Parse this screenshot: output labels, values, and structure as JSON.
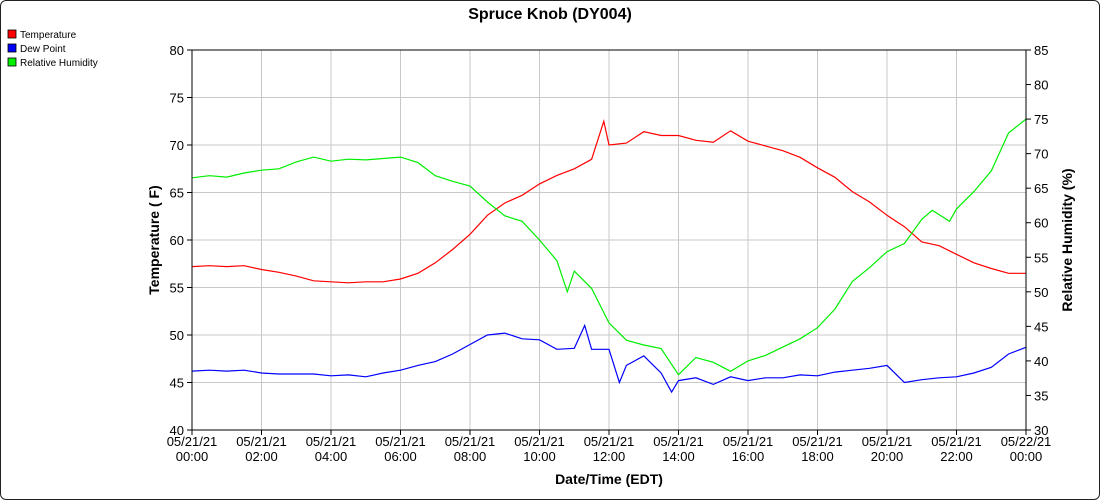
{
  "chart_data": {
    "type": "line",
    "title": "Spruce Knob (DY004)",
    "xlabel": "Date/Time (EDT)",
    "ylabel": "Temperature ( F)",
    "y2label": "Relative Humidity (%)",
    "ylim": [
      40,
      80
    ],
    "y2lim": [
      30,
      85
    ],
    "yticks": [
      "40",
      "45",
      "50",
      "55",
      "60",
      "65",
      "70",
      "75",
      "80"
    ],
    "y2ticks": [
      "30",
      "35",
      "40",
      "45",
      "50",
      "55",
      "60",
      "65",
      "70",
      "75",
      "80",
      "85"
    ],
    "xlim_hours": [
      0,
      24
    ],
    "xticks": [
      {
        "date": "05/21/21",
        "time": "00:00"
      },
      {
        "date": "05/21/21",
        "time": "02:00"
      },
      {
        "date": "05/21/21",
        "time": "04:00"
      },
      {
        "date": "05/21/21",
        "time": "06:00"
      },
      {
        "date": "05/21/21",
        "time": "08:00"
      },
      {
        "date": "05/21/21",
        "time": "10:00"
      },
      {
        "date": "05/21/21",
        "time": "12:00"
      },
      {
        "date": "05/21/21",
        "time": "14:00"
      },
      {
        "date": "05/21/21",
        "time": "16:00"
      },
      {
        "date": "05/21/21",
        "time": "18:00"
      },
      {
        "date": "05/21/21",
        "time": "20:00"
      },
      {
        "date": "05/21/21",
        "time": "22:00"
      },
      {
        "date": "05/22/21",
        "time": "00:00"
      }
    ],
    "grid": true,
    "legend_position": "top-left",
    "series": [
      {
        "name": "Temperature",
        "color": "#ff0000",
        "axis": "left",
        "points": [
          [
            0.0,
            57.2
          ],
          [
            0.5,
            57.3
          ],
          [
            1.0,
            57.2
          ],
          [
            1.5,
            57.3
          ],
          [
            2.0,
            56.9
          ],
          [
            2.5,
            56.6
          ],
          [
            3.0,
            56.2
          ],
          [
            3.5,
            55.7
          ],
          [
            4.0,
            55.6
          ],
          [
            4.5,
            55.5
          ],
          [
            5.0,
            55.6
          ],
          [
            5.5,
            55.6
          ],
          [
            6.0,
            55.9
          ],
          [
            6.5,
            56.5
          ],
          [
            7.0,
            57.6
          ],
          [
            7.5,
            59.0
          ],
          [
            8.0,
            60.6
          ],
          [
            8.5,
            62.6
          ],
          [
            9.0,
            63.9
          ],
          [
            9.5,
            64.7
          ],
          [
            10.0,
            65.9
          ],
          [
            10.5,
            66.8
          ],
          [
            11.0,
            67.5
          ],
          [
            11.5,
            68.5
          ],
          [
            11.85,
            72.5
          ],
          [
            12.0,
            70.0
          ],
          [
            12.5,
            70.2
          ],
          [
            13.0,
            71.4
          ],
          [
            13.5,
            71.0
          ],
          [
            14.0,
            71.0
          ],
          [
            14.5,
            70.5
          ],
          [
            15.0,
            70.3
          ],
          [
            15.5,
            71.5
          ],
          [
            16.0,
            70.4
          ],
          [
            16.5,
            69.9
          ],
          [
            17.0,
            69.4
          ],
          [
            17.5,
            68.7
          ],
          [
            18.0,
            67.6
          ],
          [
            18.5,
            66.6
          ],
          [
            19.0,
            65.1
          ],
          [
            19.5,
            64.0
          ],
          [
            20.0,
            62.6
          ],
          [
            20.5,
            61.4
          ],
          [
            21.0,
            59.8
          ],
          [
            21.5,
            59.4
          ],
          [
            22.0,
            58.5
          ],
          [
            22.5,
            57.6
          ],
          [
            23.0,
            57.0
          ],
          [
            23.5,
            56.5
          ],
          [
            24.0,
            56.5
          ]
        ]
      },
      {
        "name": "Dew Point",
        "color": "#0000ff",
        "axis": "left",
        "points": [
          [
            0.0,
            46.2
          ],
          [
            0.5,
            46.3
          ],
          [
            1.0,
            46.2
          ],
          [
            1.5,
            46.3
          ],
          [
            2.0,
            46.0
          ],
          [
            2.5,
            45.9
          ],
          [
            3.0,
            45.9
          ],
          [
            3.5,
            45.9
          ],
          [
            4.0,
            45.7
          ],
          [
            4.5,
            45.8
          ],
          [
            5.0,
            45.6
          ],
          [
            5.5,
            46.0
          ],
          [
            6.0,
            46.3
          ],
          [
            6.5,
            46.8
          ],
          [
            7.0,
            47.2
          ],
          [
            7.5,
            48.0
          ],
          [
            8.0,
            49.0
          ],
          [
            8.5,
            50.0
          ],
          [
            9.0,
            50.2
          ],
          [
            9.5,
            49.6
          ],
          [
            10.0,
            49.5
          ],
          [
            10.5,
            48.5
          ],
          [
            11.0,
            48.6
          ],
          [
            11.3,
            51.0
          ],
          [
            11.5,
            48.5
          ],
          [
            12.0,
            48.5
          ],
          [
            12.3,
            45.0
          ],
          [
            12.5,
            46.8
          ],
          [
            13.0,
            47.8
          ],
          [
            13.5,
            46.0
          ],
          [
            13.8,
            44.0
          ],
          [
            14.0,
            45.2
          ],
          [
            14.5,
            45.5
          ],
          [
            15.0,
            44.8
          ],
          [
            15.5,
            45.6
          ],
          [
            16.0,
            45.2
          ],
          [
            16.5,
            45.5
          ],
          [
            17.0,
            45.5
          ],
          [
            17.5,
            45.8
          ],
          [
            18.0,
            45.7
          ],
          [
            18.5,
            46.1
          ],
          [
            19.0,
            46.3
          ],
          [
            19.5,
            46.5
          ],
          [
            20.0,
            46.8
          ],
          [
            20.5,
            45.0
          ],
          [
            21.0,
            45.3
          ],
          [
            21.5,
            45.5
          ],
          [
            22.0,
            45.6
          ],
          [
            22.5,
            46.0
          ],
          [
            23.0,
            46.6
          ],
          [
            23.5,
            48.0
          ],
          [
            24.0,
            48.7
          ]
        ]
      },
      {
        "name": "Relative Humidity",
        "color": "#00ee00",
        "axis": "right",
        "points": [
          [
            0.0,
            66.5
          ],
          [
            0.5,
            66.8
          ],
          [
            1.0,
            66.6
          ],
          [
            1.5,
            67.2
          ],
          [
            2.0,
            67.6
          ],
          [
            2.5,
            67.8
          ],
          [
            3.0,
            68.8
          ],
          [
            3.5,
            69.5
          ],
          [
            4.0,
            68.9
          ],
          [
            4.5,
            69.2
          ],
          [
            5.0,
            69.1
          ],
          [
            5.5,
            69.3
          ],
          [
            6.0,
            69.5
          ],
          [
            6.5,
            68.7
          ],
          [
            7.0,
            66.8
          ],
          [
            7.5,
            66.0
          ],
          [
            8.0,
            65.3
          ],
          [
            8.5,
            63.0
          ],
          [
            9.0,
            61.0
          ],
          [
            9.5,
            60.2
          ],
          [
            10.0,
            57.5
          ],
          [
            10.5,
            54.5
          ],
          [
            10.8,
            50.0
          ],
          [
            11.0,
            53.0
          ],
          [
            11.5,
            50.5
          ],
          [
            12.0,
            45.5
          ],
          [
            12.5,
            43.0
          ],
          [
            13.0,
            42.3
          ],
          [
            13.5,
            41.8
          ],
          [
            14.0,
            38.0
          ],
          [
            14.5,
            40.5
          ],
          [
            15.0,
            39.8
          ],
          [
            15.5,
            38.5
          ],
          [
            16.0,
            40.0
          ],
          [
            16.5,
            40.8
          ],
          [
            17.0,
            42.0
          ],
          [
            17.5,
            43.2
          ],
          [
            18.0,
            44.8
          ],
          [
            18.5,
            47.5
          ],
          [
            19.0,
            51.5
          ],
          [
            19.5,
            53.5
          ],
          [
            20.0,
            55.8
          ],
          [
            20.5,
            57.0
          ],
          [
            21.0,
            60.5
          ],
          [
            21.3,
            61.8
          ],
          [
            21.8,
            60.2
          ],
          [
            22.0,
            62.0
          ],
          [
            22.5,
            64.5
          ],
          [
            23.0,
            67.5
          ],
          [
            23.5,
            73.0
          ],
          [
            24.0,
            75.0
          ]
        ]
      }
    ]
  }
}
